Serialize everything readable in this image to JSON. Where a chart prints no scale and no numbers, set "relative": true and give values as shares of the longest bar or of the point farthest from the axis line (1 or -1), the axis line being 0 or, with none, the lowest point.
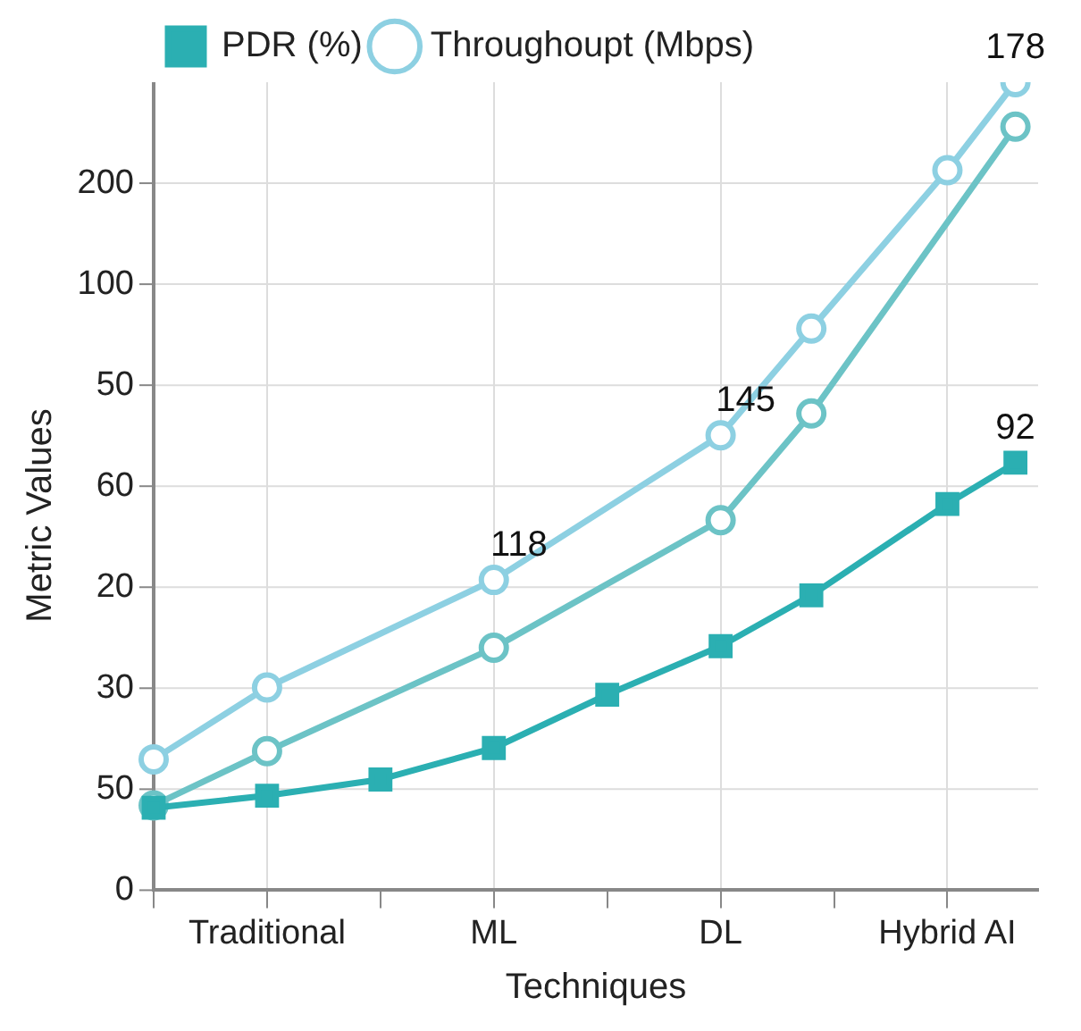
{
  "chart_data": {
    "type": "line",
    "xlabel": "Techniques",
    "ylabel": "Metric Values",
    "relative": true,
    "categories": [
      null,
      null,
      null,
      null,
      null,
      "Traditional",
      null,
      null,
      null,
      null,
      null,
      null,
      null,
      null,
      null,
      "ML",
      null,
      null,
      null,
      null,
      null,
      null,
      null,
      null,
      null,
      "DL",
      null,
      null,
      null,
      null,
      null,
      null,
      null,
      null,
      null,
      "Hybrid AI",
      null,
      null,
      null,
      null
    ],
    "series": [
      {
        "name": "Throughoupt (Mbps)",
        "color": "#8dd0e2",
        "marker": "circle",
        "values": [
          0.162,
          null,
          null,
          null,
          null,
          0.251,
          null,
          null,
          null,
          null,
          null,
          null,
          null,
          null,
          null,
          0.384,
          null,
          null,
          null,
          null,
          null,
          null,
          null,
          null,
          null,
          0.563,
          null,
          null,
          null,
          0.695,
          null,
          null,
          null,
          null,
          null,
          0.891,
          null,
          null,
          1,
          null
        ]
      },
      {
        "color": "#6cc3c6",
        "marker": "circle",
        "values": [
          0.105,
          null,
          null,
          null,
          null,
          0.172,
          null,
          null,
          null,
          null,
          null,
          null,
          null,
          null,
          null,
          0.3,
          null,
          null,
          null,
          null,
          null,
          null,
          null,
          null,
          null,
          0.458,
          null,
          null,
          null,
          0.59,
          null,
          null,
          null,
          null,
          null,
          null,
          null,
          null,
          0.945,
          null
        ]
      },
      {
        "name": "PDR (%)",
        "color": "#2bafb2",
        "marker": "square",
        "values": [
          0.102,
          null,
          null,
          null,
          null,
          0.117,
          null,
          null,
          null,
          null,
          0.137,
          null,
          null,
          null,
          null,
          0.176,
          null,
          null,
          null,
          null,
          0.242,
          null,
          null,
          null,
          null,
          0.302,
          null,
          null,
          null,
          0.365,
          null,
          null,
          null,
          null,
          null,
          0.478,
          null,
          null,
          0.529,
          null
        ]
      }
    ],
    "annotations": [
      "0",
      "50",
      "30",
      "20",
      "60",
      "50",
      "100",
      "200",
      {
        "text": "118",
        "x": "ML",
        "y": 0.384
      },
      {
        "text": "145",
        "x": "DL",
        "y": 0.563
      },
      {
        "text": "178",
        "y": 1
      },
      {
        "text": "92",
        "y": 0.529
      }
    ],
    "grid": true,
    "legend": "top left"
  }
}
